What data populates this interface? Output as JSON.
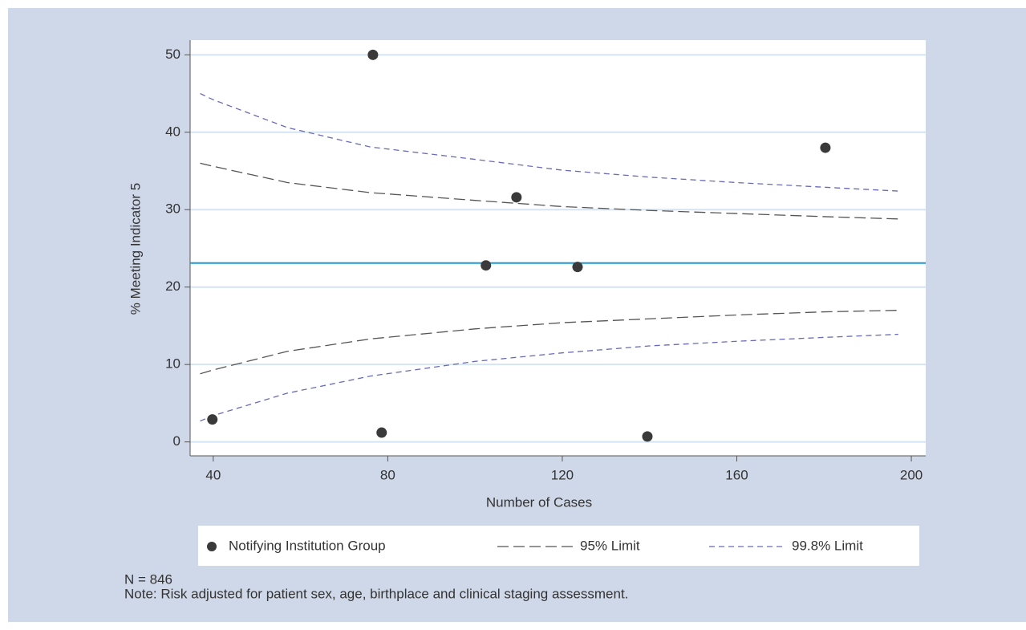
{
  "chart_data": {
    "type": "funnel",
    "xlabel": "Number of Cases",
    "ylabel": "% Meeting Indicator 5",
    "xlim": [
      34.7,
      203.3
    ],
    "ylim": [
      -1.8,
      51.9
    ],
    "xticks": [
      40,
      80,
      120,
      160,
      200
    ],
    "yticks": [
      0,
      10,
      20,
      30,
      40,
      50
    ],
    "grid": true,
    "reference_line": {
      "value": 23.1,
      "color": "#1a9bd7"
    },
    "points": {
      "name": "Notifying Institution Group",
      "color": "#3a3a3a",
      "x": [
        39.8,
        76.6,
        78.6,
        102.5,
        109.5,
        123.5,
        139.5,
        180.3
      ],
      "values": [
        2.9,
        50,
        1.2,
        22.8,
        31.6,
        22.6,
        0.7,
        38.0
      ]
    },
    "limits": [
      {
        "name": "95% Limit",
        "color": "#555555",
        "dash": "14 6",
        "x": [
          37,
          40,
          57,
          76,
          100,
          120,
          140,
          160,
          180,
          197
        ],
        "upper": [
          36,
          35.6,
          33.5,
          32.2,
          31.2,
          30.4,
          29.9,
          29.5,
          29.1,
          28.8
        ],
        "lower": [
          8.8,
          9.3,
          11.7,
          13.3,
          14.6,
          15.4,
          15.9,
          16.4,
          16.8,
          17.0
        ]
      },
      {
        "name": "99.8% Limit",
        "color": "#6a6ab8",
        "dash": "7 5",
        "x": [
          37,
          40,
          57,
          76,
          100,
          120,
          140,
          160,
          180,
          197
        ],
        "upper": [
          45,
          44.2,
          40.6,
          38.1,
          36.5,
          35.1,
          34.2,
          33.5,
          32.9,
          32.4
        ],
        "lower": [
          2.7,
          3.4,
          6.3,
          8.5,
          10.4,
          11.5,
          12.4,
          13.0,
          13.5,
          13.9
        ]
      }
    ],
    "footnotes": [
      "N = 846",
      "Note: Risk adjusted for patient sex, age, birthplace and clinical staging assessment."
    ]
  }
}
